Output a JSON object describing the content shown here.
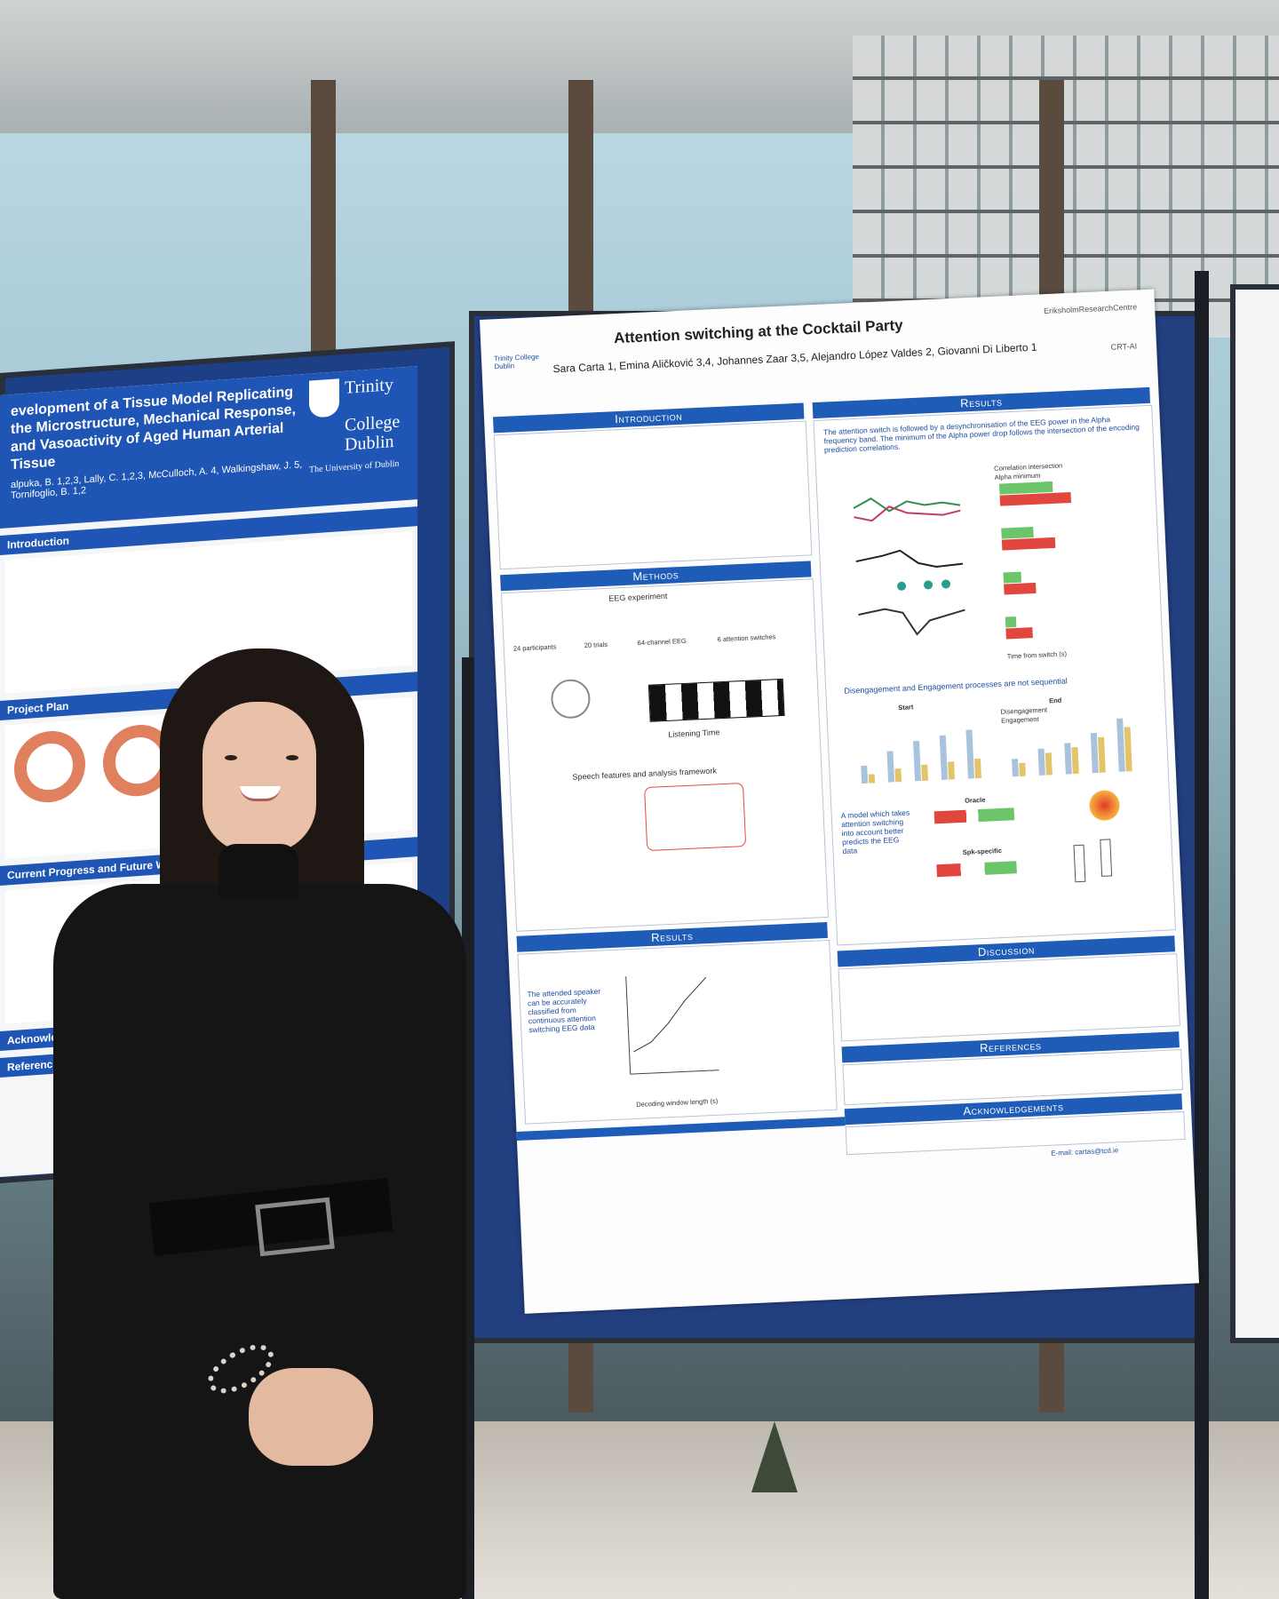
{
  "left_poster": {
    "title": "evelopment of a Tissue Model Replicating the Microstructure, Mechanical Response, and Vasoactivity of Aged Human Arterial Tissue",
    "authors": "alpuka, B. 1,2,3, Lally, C. 1,2,3, McCulloch, A. 4, Walkingshaw, J. 5, Tornifoglio, B. 1,2",
    "logo_line1": "Trinity",
    "logo_line2": "College",
    "logo_line3": "Dublin",
    "logo_sub": "The University of Dublin",
    "sections": [
      "Introduction",
      "Project Plan",
      "Current Progress and Future W",
      "Acknowledge",
      "References"
    ]
  },
  "center_poster": {
    "title": "Attention switching at the Cocktail Party",
    "authors": "Sara Carta 1, Emina Aličković 3,4, Johannes Zaar 3,5, Alejandro López Valdes 2, Giovanni Di Liberto 1",
    "sections": {
      "introduction": "Introduction",
      "methods": "Methods",
      "results_left": "Results",
      "results_right": "Results",
      "discussion": "Discussion",
      "references": "References",
      "acknowledgements": "Acknowledgements"
    },
    "methods_heading": "EEG experiment",
    "method_items": [
      "24 participants",
      "20 trials",
      "64-channel EEG",
      "6 attention switches"
    ],
    "listening_time": "Listening Time",
    "speech_framework": "Speech features and analysis framework",
    "results_summary": "The attention switch is followed by a desynchronisation of the EEG power in the Alpha frequency band. The minimum of the Alpha power drop follows the intersection of the encoding prediction correlations.",
    "legend_correlation": "Correlation intersection",
    "legend_alpha": "Alpha minimum",
    "x_label_time": "Time from switch (s)",
    "disengagement_title": "Disengagement and Engagement processes are not sequential",
    "start_label": "Start",
    "end_label": "End",
    "legend_dis": "Disengagement",
    "legend_eng": "Engagement",
    "model_text": "A model which takes attention switching into account better predicts the EEG data",
    "oracle": "Oracle",
    "spk_specific": "Spk-specific",
    "attended_text": "The attended speaker can be accurately classified from continuous attention switching EEG data",
    "decoding_label": "Decoding window length (s)",
    "email": "E-mail: cartas@tcd.ie",
    "erikshom": "EriksholmResearchCentre",
    "crt": "CRT-AI"
  }
}
